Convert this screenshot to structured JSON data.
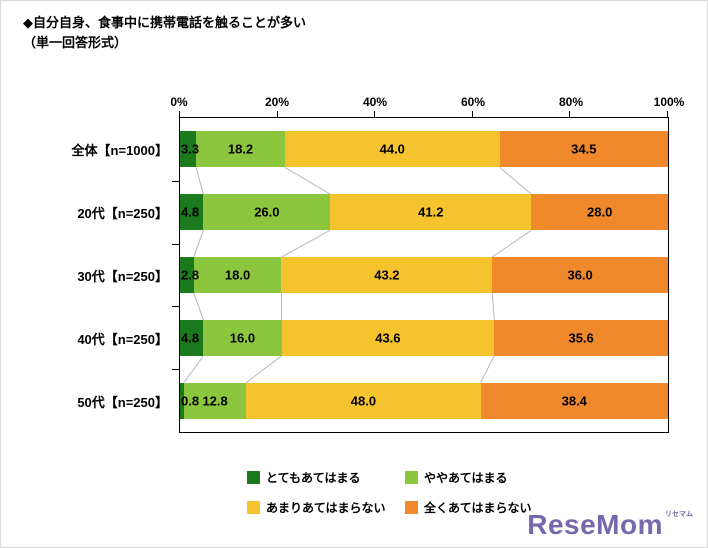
{
  "title": {
    "line1": "◆自分自身、食事中に携帯電話を触ることが多い",
    "line2": "（単一回答形式）"
  },
  "chart_data": {
    "type": "bar",
    "stacked": true,
    "orientation": "horizontal",
    "title": "自分自身、食事中に携帯電話を触ることが多い（単一回答形式）",
    "categories": [
      "全体【n=1000】",
      "20代【n=250】",
      "30代【n=250】",
      "40代【n=250】",
      "50代【n=250】"
    ],
    "series": [
      {
        "name": "とてもあてはまる",
        "color": "#1b7a1b",
        "values": [
          3.3,
          4.8,
          2.8,
          4.8,
          0.8
        ]
      },
      {
        "name": "ややあてはまる",
        "color": "#8cc63f",
        "values": [
          18.2,
          26.0,
          18.0,
          16.0,
          12.8
        ]
      },
      {
        "name": "あまりあてはまらない",
        "color": "#f5c32e",
        "values": [
          44.0,
          41.2,
          43.2,
          43.6,
          48.0
        ]
      },
      {
        "name": "全くあてはまらない",
        "color": "#f0882c",
        "values": [
          34.5,
          28.0,
          36.0,
          35.6,
          38.4
        ]
      }
    ],
    "x_axis": {
      "ticks": [
        "0%",
        "20%",
        "40%",
        "60%",
        "80%",
        "100%"
      ],
      "range": [
        0,
        100
      ],
      "position": "top"
    },
    "legend_position": "bottom",
    "grid": false,
    "connector_line_color": "#b9b9b9"
  },
  "logo": {
    "text": "ReseMom",
    "sub": "リセマム",
    "color": "#7668ab"
  }
}
